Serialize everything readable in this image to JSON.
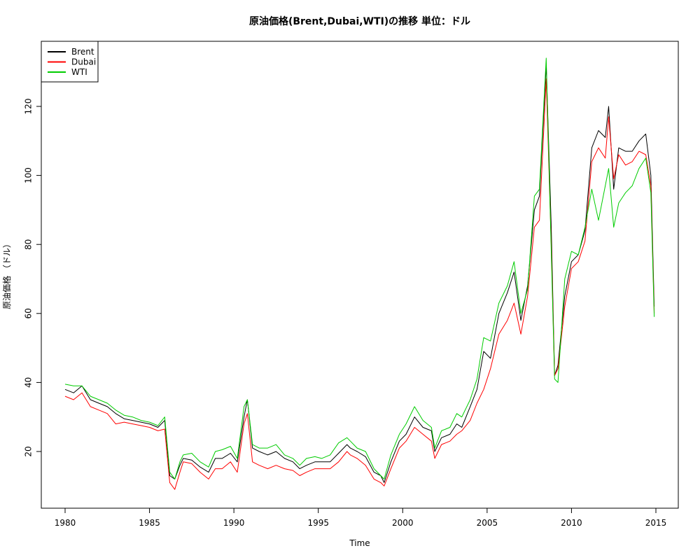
{
  "chart_data": {
    "type": "line",
    "title": "原油価格(Brent,Dubai,WTI)の推移 単位：ドル",
    "xlabel": "Time",
    "ylabel": "原油価格 （ドル）",
    "xlim": [
      1980,
      2015
    ],
    "ylim": [
      6,
      138
    ],
    "xticks": [
      1980,
      1985,
      1990,
      1995,
      2000,
      2005,
      2010,
      2015
    ],
    "yticks": [
      20,
      40,
      60,
      80,
      100,
      120
    ],
    "grid": false,
    "legend_position": "top-left",
    "x": [
      1980.0,
      1980.5,
      1981.0,
      1981.5,
      1982.0,
      1982.5,
      1983.0,
      1983.5,
      1984.0,
      1984.5,
      1985.0,
      1985.5,
      1985.9,
      1986.2,
      1986.5,
      1986.8,
      1987.0,
      1987.5,
      1988.0,
      1988.5,
      1988.9,
      1989.3,
      1989.8,
      1990.2,
      1990.6,
      1990.8,
      1991.1,
      1991.5,
      1992.0,
      1992.5,
      1993.0,
      1993.5,
      1993.9,
      1994.3,
      1994.8,
      1995.2,
      1995.7,
      1996.2,
      1996.7,
      1996.9,
      1997.3,
      1997.8,
      1998.3,
      1998.7,
      1998.9,
      1999.3,
      1999.8,
      2000.2,
      2000.7,
      2001.2,
      2001.7,
      2001.9,
      2002.3,
      2002.8,
      2003.2,
      2003.5,
      2004.0,
      2004.4,
      2004.8,
      2005.2,
      2005.7,
      2006.2,
      2006.6,
      2007.0,
      2007.4,
      2007.8,
      2008.1,
      2008.5,
      2008.8,
      2009.0,
      2009.2,
      2009.6,
      2010.0,
      2010.4,
      2010.8,
      2011.2,
      2011.6,
      2012.0,
      2012.2,
      2012.5,
      2012.8,
      2013.2,
      2013.6,
      2014.0,
      2014.4,
      2014.7,
      2014.9
    ],
    "series": [
      {
        "name": "Brent",
        "color": "#000000",
        "values": [
          38,
          37,
          39,
          35,
          34,
          33,
          31,
          29.5,
          29,
          28.5,
          28,
          27,
          29,
          13,
          12,
          16,
          18,
          17.5,
          15.5,
          14,
          18,
          18,
          19.5,
          17,
          30,
          35,
          21,
          20,
          19,
          20,
          18,
          17,
          15,
          16,
          17,
          17,
          17,
          19.5,
          22,
          21,
          20,
          18.5,
          14,
          13,
          11,
          17,
          23,
          25,
          30,
          27,
          26,
          20,
          24,
          25,
          28,
          27,
          33,
          38,
          49,
          47,
          60,
          66,
          72,
          58,
          68,
          90,
          94,
          132,
          85,
          42,
          45,
          65,
          75,
          77,
          84,
          108,
          113,
          111,
          120,
          96,
          108,
          107,
          107,
          110,
          112,
          100,
          62
        ]
      },
      {
        "name": "Dubai",
        "color": "#ff0000",
        "values": [
          36,
          35,
          37,
          33,
          32,
          31,
          28,
          28.5,
          28,
          27.5,
          27,
          26,
          26.5,
          11,
          9,
          14,
          17,
          16.5,
          14,
          12,
          15,
          15,
          17,
          14,
          28,
          31,
          17,
          16,
          15,
          16,
          15,
          14.5,
          13,
          14,
          15,
          15,
          15,
          17,
          20,
          19,
          18,
          16,
          12,
          11,
          10,
          15,
          21,
          23,
          27,
          25,
          23,
          18,
          22,
          23,
          25,
          26,
          29,
          34,
          38,
          44,
          54,
          58,
          63,
          54,
          65,
          85,
          87,
          128,
          80,
          42,
          44,
          62,
          73,
          75,
          81,
          104,
          108,
          105,
          117,
          99,
          106,
          103,
          104,
          107,
          106,
          97,
          60
        ]
      },
      {
        "name": "WTI",
        "color": "#00cc00",
        "values": [
          39.5,
          39,
          39,
          36,
          35,
          34,
          32,
          30.5,
          30,
          29,
          28.5,
          27.5,
          30,
          14,
          12,
          17,
          19,
          19.5,
          17,
          15.5,
          20,
          20.5,
          21.5,
          18,
          33,
          35,
          22,
          21,
          21,
          22,
          19,
          18,
          16,
          18,
          18.5,
          18,
          19,
          22.5,
          24,
          23,
          21,
          20,
          15,
          13,
          12,
          19,
          25,
          28,
          33,
          29,
          27,
          21,
          26,
          27,
          31,
          30,
          35,
          41,
          53,
          52,
          63,
          68,
          75,
          60,
          67,
          94,
          96,
          134,
          78,
          41,
          40,
          70,
          78,
          77,
          85,
          96,
          87,
          97,
          102,
          85,
          92,
          95,
          97,
          102,
          105,
          95,
          59
        ]
      }
    ]
  }
}
